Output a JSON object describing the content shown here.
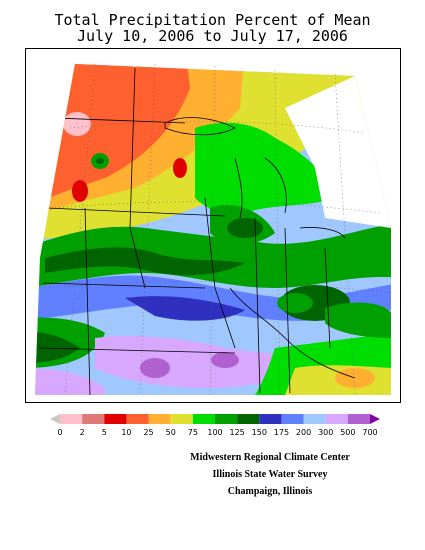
{
  "title": {
    "line1": "Total Precipitation Percent of Mean",
    "line2": "July 10, 2006 to July 17, 2006"
  },
  "legend": {
    "labels": [
      "0",
      "2",
      "5",
      "10",
      "25",
      "50",
      "75",
      "100",
      "125",
      "150",
      "175",
      "200",
      "300",
      "500",
      "700"
    ],
    "colors": [
      "#c8c8c8",
      "#ffc0cb",
      "#e07878",
      "#e00000",
      "#ff6030",
      "#ffb030",
      "#e0e030",
      "#00dd00",
      "#00a000",
      "#006400",
      "#3030c0",
      "#6080ff",
      "#a0c8ff",
      "#d8a8ff",
      "#b060d0",
      "#8000a0"
    ]
  },
  "credits": {
    "line1": "Midwestern Regional Climate Center",
    "line2": "Illinois State Water Survey",
    "line3": "Champaign, Illinois"
  }
}
